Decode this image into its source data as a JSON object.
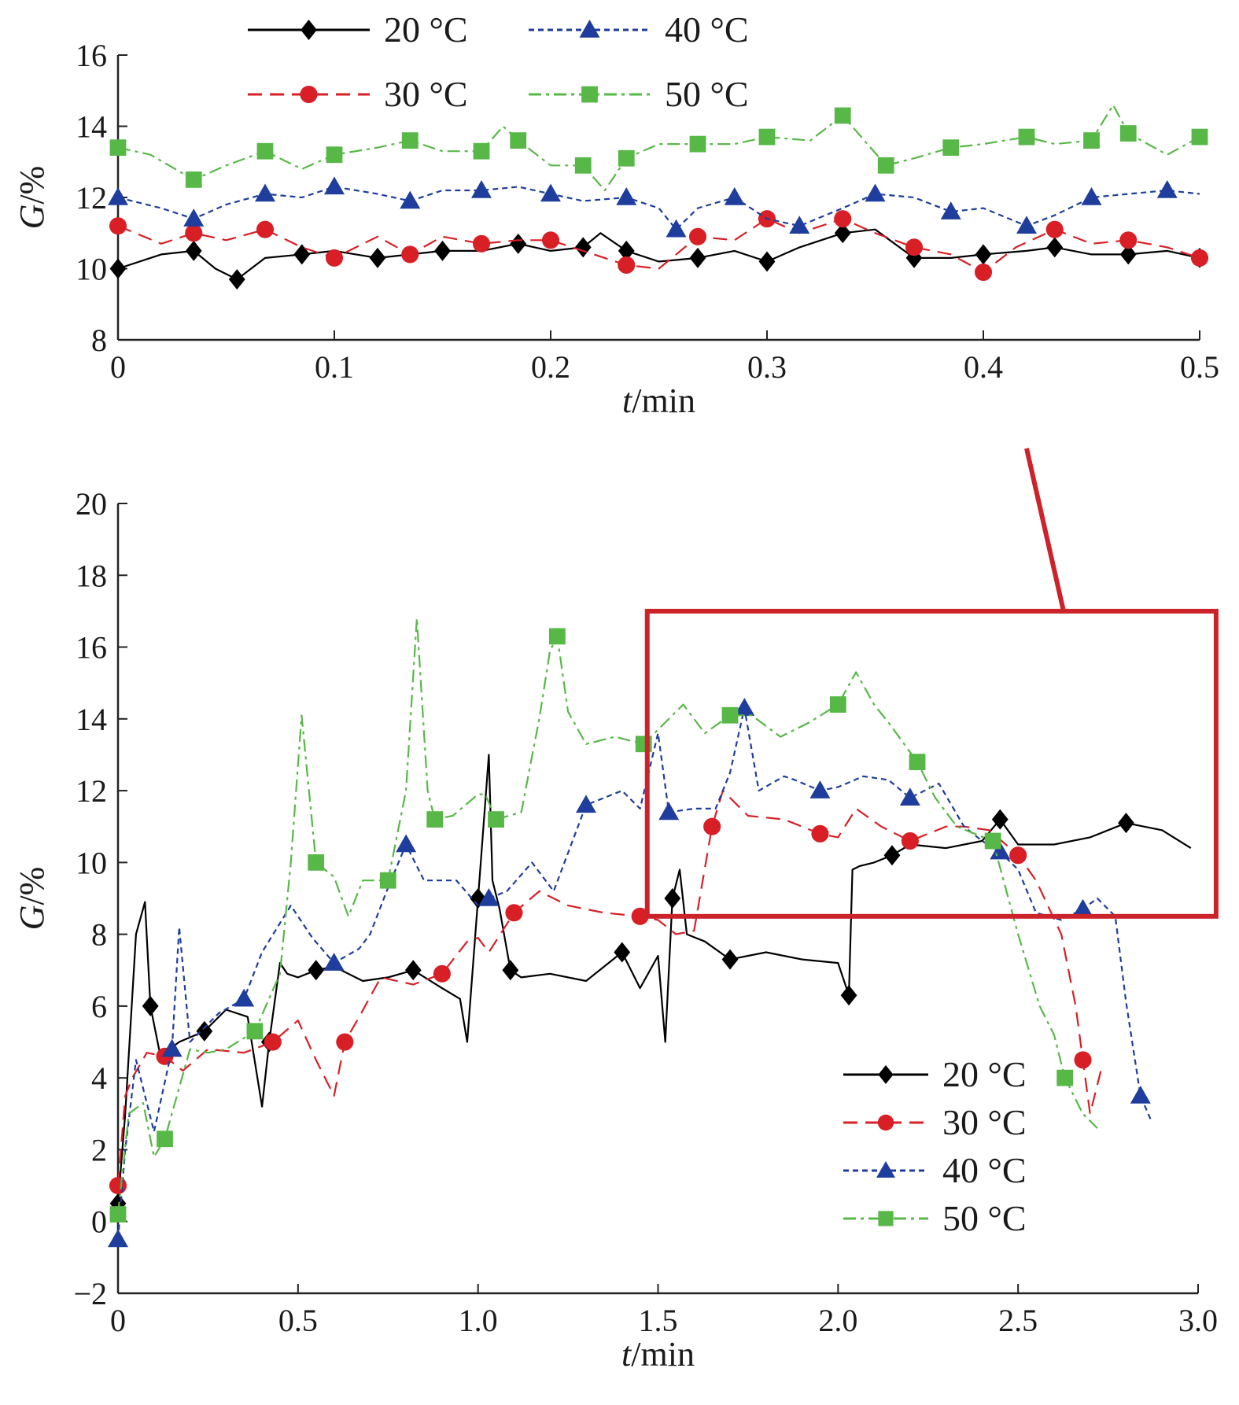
{
  "colors": {
    "20 °C": "#000000",
    "30 °C": "#d81f26",
    "40 °C": "#1f3d9c",
    "50 °C": "#57b847",
    "highlight_box": "#cc2229"
  },
  "markers": {
    "20 °C": "diamond",
    "30 °C": "circle",
    "40 °C": "triangle",
    "50 °C": "square"
  },
  "chart_data": [
    {
      "type": "line",
      "panel": "inset-zoom",
      "xlabel_italic": "t",
      "xlabel_rest": "/min",
      "ylabel_italic": "G",
      "ylabel_rest": "/%",
      "xlim": [
        0,
        0.5
      ],
      "ylim": [
        8,
        16
      ],
      "x_ticks": [
        "0",
        "0.1",
        "0.2",
        "0.3",
        "0.4",
        "0.5"
      ],
      "y_ticks": [
        "8",
        "10",
        "12",
        "14",
        "16"
      ],
      "legend": [
        "20 °C",
        "40 °C",
        "30 °C",
        "50 °C"
      ],
      "legend_position": "top",
      "series": [
        {
          "name": "20 °C",
          "x": [
            0,
            0.02,
            0.035,
            0.045,
            0.055,
            0.068,
            0.085,
            0.1,
            0.12,
            0.135,
            0.15,
            0.168,
            0.185,
            0.2,
            0.215,
            0.223,
            0.235,
            0.25,
            0.268,
            0.285,
            0.3,
            0.315,
            0.335,
            0.35,
            0.368,
            0.385,
            0.4,
            0.42,
            0.433,
            0.45,
            0.467,
            0.485,
            0.5
          ],
          "y": [
            10.0,
            10.4,
            10.5,
            10.0,
            9.7,
            10.3,
            10.4,
            10.5,
            10.3,
            10.4,
            10.5,
            10.5,
            10.7,
            10.5,
            10.6,
            11.0,
            10.5,
            10.2,
            10.3,
            10.5,
            10.2,
            10.6,
            11.0,
            11.1,
            10.3,
            10.3,
            10.4,
            10.5,
            10.6,
            10.4,
            10.4,
            10.5,
            10.3
          ]
        },
        {
          "name": "30 °C",
          "x": [
            0,
            0.02,
            0.035,
            0.05,
            0.068,
            0.085,
            0.1,
            0.12,
            0.135,
            0.15,
            0.168,
            0.185,
            0.2,
            0.215,
            0.235,
            0.25,
            0.268,
            0.285,
            0.3,
            0.315,
            0.335,
            0.35,
            0.368,
            0.385,
            0.4,
            0.415,
            0.433,
            0.45,
            0.467,
            0.485,
            0.5
          ],
          "y": [
            11.2,
            10.7,
            11.0,
            10.8,
            11.1,
            10.6,
            10.3,
            10.9,
            10.4,
            10.9,
            10.7,
            10.8,
            10.8,
            10.5,
            10.1,
            10.0,
            10.9,
            10.8,
            11.4,
            11.0,
            11.4,
            11.0,
            10.6,
            10.4,
            9.9,
            10.6,
            11.1,
            10.7,
            10.8,
            10.6,
            10.3
          ]
        },
        {
          "name": "40 °C",
          "x": [
            0,
            0.02,
            0.035,
            0.05,
            0.068,
            0.085,
            0.1,
            0.12,
            0.135,
            0.15,
            0.168,
            0.185,
            0.2,
            0.215,
            0.235,
            0.25,
            0.258,
            0.268,
            0.285,
            0.3,
            0.315,
            0.335,
            0.35,
            0.368,
            0.385,
            0.4,
            0.42,
            0.433,
            0.45,
            0.467,
            0.485,
            0.5
          ],
          "y": [
            12.0,
            11.7,
            11.4,
            11.8,
            12.1,
            12.0,
            12.3,
            12.1,
            11.9,
            12.2,
            12.2,
            12.3,
            12.1,
            11.9,
            12.0,
            11.7,
            11.1,
            11.7,
            12.0,
            11.4,
            11.2,
            11.7,
            12.1,
            12.0,
            11.6,
            11.7,
            11.2,
            11.5,
            12.0,
            12.1,
            12.2,
            12.1
          ]
        },
        {
          "name": "50 °C",
          "x": [
            0,
            0.015,
            0.035,
            0.05,
            0.068,
            0.085,
            0.1,
            0.12,
            0.135,
            0.15,
            0.168,
            0.178,
            0.185,
            0.2,
            0.215,
            0.225,
            0.235,
            0.25,
            0.268,
            0.285,
            0.3,
            0.32,
            0.335,
            0.345,
            0.355,
            0.368,
            0.385,
            0.4,
            0.42,
            0.433,
            0.45,
            0.46,
            0.467,
            0.485,
            0.5
          ],
          "y": [
            13.4,
            13.2,
            12.5,
            12.9,
            13.3,
            12.8,
            13.2,
            13.4,
            13.6,
            13.3,
            13.3,
            14.0,
            13.6,
            12.9,
            12.9,
            12.2,
            13.1,
            13.5,
            13.5,
            13.5,
            13.7,
            13.6,
            14.3,
            13.6,
            12.9,
            13.1,
            13.4,
            13.5,
            13.7,
            13.5,
            13.6,
            14.6,
            13.8,
            13.2,
            13.7
          ]
        }
      ]
    },
    {
      "type": "line",
      "panel": "main",
      "xlabel_italic": "t",
      "xlabel_rest": "/min",
      "ylabel_italic": "G",
      "ylabel_rest": "/%",
      "xlim": [
        0,
        3.0
      ],
      "ylim": [
        -2,
        20
      ],
      "x_ticks": [
        "0",
        "0.5",
        "1.0",
        "1.5",
        "2.0",
        "2.5",
        "3.0"
      ],
      "y_ticks": [
        "−2",
        "0",
        "2",
        "4",
        "6",
        "8",
        "10",
        "12",
        "14",
        "16",
        "18",
        "20"
      ],
      "legend": [
        "20 °C",
        "30 °C",
        "40 °C",
        "50 °C"
      ],
      "legend_position": "lower-right",
      "highlight_box": {
        "x": [
          1.47,
          3.05
        ],
        "y": [
          8.5,
          17.0
        ]
      },
      "series": [
        {
          "name": "20 °C",
          "x": [
            0,
            0.02,
            0.05,
            0.075,
            0.09,
            0.12,
            0.13,
            0.17,
            0.24,
            0.3,
            0.36,
            0.4,
            0.42,
            0.45,
            0.47,
            0.5,
            0.55,
            0.6,
            0.68,
            0.75,
            0.82,
            0.9,
            0.95,
            0.97,
            1.0,
            1.03,
            1.04,
            1.06,
            1.09,
            1.12,
            1.2,
            1.3,
            1.4,
            1.45,
            1.5,
            1.52,
            1.54,
            1.56,
            1.58,
            1.63,
            1.7,
            1.8,
            1.9,
            2.0,
            2.03,
            2.04,
            2.06,
            2.1,
            2.15,
            2.2,
            2.3,
            2.4,
            2.45,
            2.5,
            2.6,
            2.7,
            2.8,
            2.9,
            2.98
          ],
          "y": [
            0.5,
            3.0,
            8.0,
            8.9,
            6.0,
            4.5,
            4.7,
            5.0,
            5.3,
            5.9,
            5.7,
            3.2,
            5.0,
            7.2,
            6.9,
            6.8,
            7.0,
            7.1,
            6.7,
            6.8,
            7.0,
            6.5,
            6.2,
            5.0,
            9.0,
            13.0,
            9.5,
            8.7,
            7.0,
            6.8,
            6.9,
            6.7,
            7.5,
            6.5,
            7.4,
            5.0,
            9.0,
            9.8,
            8.0,
            7.8,
            7.3,
            7.5,
            7.3,
            7.2,
            6.3,
            9.8,
            9.9,
            10.0,
            10.2,
            10.5,
            10.4,
            10.6,
            11.2,
            10.5,
            10.5,
            10.7,
            11.1,
            10.9,
            10.4
          ]
        },
        {
          "name": "30 °C",
          "x": [
            0,
            0.02,
            0.04,
            0.08,
            0.13,
            0.18,
            0.25,
            0.35,
            0.43,
            0.5,
            0.55,
            0.6,
            0.63,
            0.67,
            0.73,
            0.82,
            0.9,
            0.97,
            1.0,
            1.03,
            1.1,
            1.17,
            1.25,
            1.35,
            1.45,
            1.5,
            1.55,
            1.6,
            1.65,
            1.68,
            1.75,
            1.85,
            1.95,
            2.0,
            2.05,
            2.12,
            2.2,
            2.3,
            2.35,
            2.42,
            2.5,
            2.55,
            2.62,
            2.66,
            2.68,
            2.7,
            2.73
          ],
          "y": [
            1.0,
            3.5,
            4.0,
            4.7,
            4.6,
            4.2,
            4.8,
            4.7,
            5.0,
            5.6,
            4.5,
            3.5,
            5.0,
            5.7,
            6.8,
            6.6,
            6.9,
            7.8,
            7.9,
            7.5,
            8.6,
            9.2,
            8.8,
            8.6,
            8.5,
            8.4,
            8.0,
            8.1,
            11.0,
            12.0,
            11.3,
            11.2,
            10.8,
            10.7,
            11.5,
            11.0,
            10.6,
            11.0,
            11.0,
            10.9,
            10.2,
            9.5,
            8.0,
            6.0,
            4.5,
            3.0,
            4.2
          ]
        },
        {
          "name": "40 °C",
          "x": [
            0,
            0.02,
            0.05,
            0.1,
            0.15,
            0.17,
            0.2,
            0.28,
            0.35,
            0.4,
            0.48,
            0.54,
            0.6,
            0.67,
            0.7,
            0.75,
            0.8,
            0.85,
            0.94,
            1.0,
            1.03,
            1.08,
            1.15,
            1.21,
            1.3,
            1.4,
            1.45,
            1.5,
            1.53,
            1.6,
            1.66,
            1.7,
            1.74,
            1.78,
            1.85,
            1.88,
            1.95,
            2.0,
            2.07,
            2.14,
            2.2,
            2.28,
            2.35,
            2.4,
            2.45,
            2.5,
            2.55,
            2.62,
            2.68,
            2.72,
            2.77,
            2.8,
            2.84,
            2.87
          ],
          "y": [
            -0.5,
            2.0,
            4.5,
            2.5,
            4.8,
            8.2,
            5.0,
            5.8,
            6.2,
            7.5,
            8.8,
            7.9,
            7.2,
            7.6,
            8.0,
            9.3,
            10.5,
            9.5,
            9.5,
            8.8,
            9.0,
            9.2,
            10.0,
            9.2,
            11.6,
            12.0,
            11.5,
            13.6,
            11.4,
            11.5,
            11.5,
            12.5,
            14.3,
            12.0,
            12.4,
            12.3,
            12.0,
            12.1,
            12.4,
            12.3,
            11.8,
            12.2,
            11.0,
            10.6,
            10.3,
            9.8,
            8.6,
            8.4,
            8.7,
            9.0,
            8.5,
            6.1,
            3.5,
            2.8
          ]
        },
        {
          "name": "50 °C",
          "x": [
            0,
            0.03,
            0.07,
            0.1,
            0.13,
            0.2,
            0.25,
            0.3,
            0.38,
            0.45,
            0.48,
            0.51,
            0.55,
            0.6,
            0.64,
            0.68,
            0.75,
            0.8,
            0.83,
            0.86,
            0.88,
            0.93,
            1.0,
            1.02,
            1.05,
            1.12,
            1.17,
            1.2,
            1.22,
            1.25,
            1.3,
            1.38,
            1.46,
            1.5,
            1.57,
            1.63,
            1.7,
            1.76,
            1.84,
            1.92,
            2.0,
            2.05,
            2.1,
            2.14,
            2.22,
            2.27,
            2.33,
            2.38,
            2.43,
            2.5,
            2.56,
            2.6,
            2.63,
            2.68,
            2.72
          ],
          "y": [
            0.2,
            3.0,
            3.3,
            1.8,
            2.3,
            4.8,
            4.7,
            4.8,
            5.3,
            6.9,
            10.0,
            14.1,
            10.0,
            9.6,
            8.5,
            9.5,
            9.5,
            12.0,
            16.8,
            12.0,
            11.2,
            11.3,
            11.9,
            11.9,
            11.2,
            11.4,
            14.0,
            15.9,
            16.3,
            14.2,
            13.3,
            13.5,
            13.3,
            13.7,
            14.4,
            13.6,
            14.1,
            14.1,
            13.5,
            13.9,
            14.4,
            15.3,
            14.4,
            13.9,
            12.8,
            11.8,
            11.0,
            10.8,
            10.6,
            8.0,
            6.0,
            5.2,
            4.0,
            3.0,
            2.6
          ]
        }
      ]
    }
  ]
}
